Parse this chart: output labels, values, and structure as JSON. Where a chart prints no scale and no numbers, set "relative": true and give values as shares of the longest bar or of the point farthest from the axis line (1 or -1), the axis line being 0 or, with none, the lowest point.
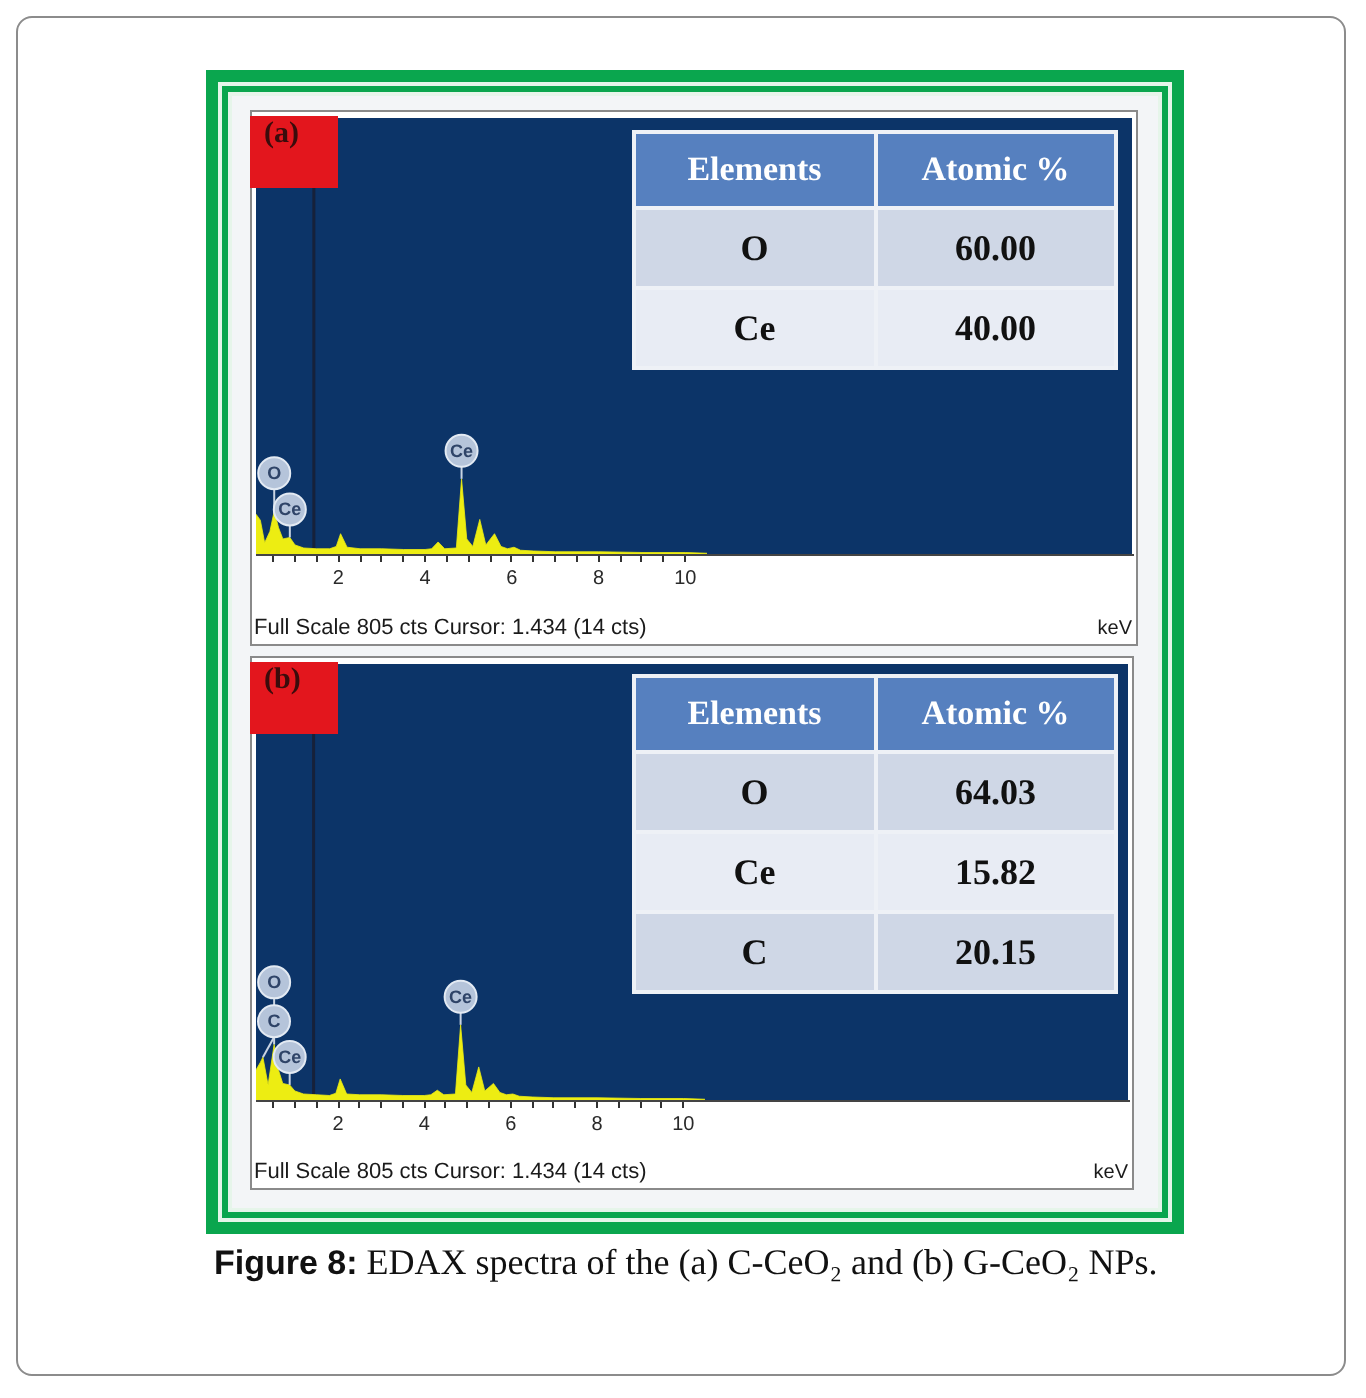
{
  "chart_data": [
    {
      "type": "area",
      "title": "(a)",
      "xlabel": "keV",
      "x": [
        0.1,
        0.2,
        0.3,
        0.42,
        0.52,
        0.62,
        0.72,
        0.88,
        1.0,
        1.2,
        1.5,
        1.8,
        1.95,
        2.05,
        2.2,
        2.5,
        3.0,
        3.5,
        4.0,
        4.15,
        4.3,
        4.45,
        4.72,
        4.84,
        4.96,
        5.1,
        5.26,
        5.4,
        5.6,
        5.75,
        5.9,
        6.05,
        6.2,
        6.5,
        7.0,
        8.0,
        9.0,
        10.0,
        10.5
      ],
      "values": [
        0.53,
        0.45,
        0.15,
        0.3,
        0.57,
        0.35,
        0.2,
        0.22,
        0.12,
        0.08,
        0.07,
        0.07,
        0.1,
        0.27,
        0.09,
        0.07,
        0.07,
        0.06,
        0.06,
        0.07,
        0.16,
        0.07,
        0.08,
        1,
        0.2,
        0.1,
        0.46,
        0.12,
        0.27,
        0.1,
        0.07,
        0.09,
        0.05,
        0.04,
        0.03,
        0.03,
        0.02,
        0.02,
        0.01
      ],
      "color": "#eded12",
      "relative": true,
      "xlim": [
        0.1,
        20.3
      ],
      "xticks": [
        {
          "value": 0.5,
          "label": null
        },
        {
          "value": 1,
          "label": null
        },
        {
          "value": 1.5,
          "label": null
        },
        2,
        {
          "value": 2.5,
          "label": null
        },
        {
          "value": 3,
          "label": null
        },
        {
          "value": 3.5,
          "label": null
        },
        4,
        {
          "value": 4.5,
          "label": null
        },
        {
          "value": 5,
          "label": null
        },
        {
          "value": 5.5,
          "label": null
        },
        6,
        {
          "value": 6.5,
          "label": null
        },
        {
          "value": 7,
          "label": null
        },
        {
          "value": 7.5,
          "label": null
        },
        8,
        {
          "value": 8.5,
          "label": null
        },
        {
          "value": 9,
          "label": null
        },
        {
          "value": 9.5,
          "label": null
        },
        10
      ],
      "ref_lines": [
        {
          "axis": "x",
          "value": 1.434,
          "color": "#16213a"
        }
      ],
      "annotations": [
        {
          "text": "O",
          "x": 0.52,
          "y": 0.57
        },
        {
          "text": "Ce",
          "x": 0.88,
          "y": 0.22
        },
        {
          "text": "Ce",
          "x": 4.84,
          "y": 1
        },
        "Full Scale 805 cts Cursor: 1.434 (14 cts)"
      ]
    },
    {
      "type": "other",
      "annotations": [
        "Elements",
        "Atomic %",
        "O",
        "60.00",
        "Ce",
        "40.00"
      ]
    },
    {
      "type": "area",
      "title": "(b)",
      "xlabel": "keV",
      "x": [
        0.1,
        0.2,
        0.26,
        0.38,
        0.52,
        0.62,
        0.72,
        0.88,
        1.0,
        1.2,
        1.5,
        1.8,
        1.95,
        2.05,
        2.2,
        2.5,
        3.0,
        3.5,
        4.0,
        4.15,
        4.3,
        4.45,
        4.72,
        4.84,
        4.96,
        5.1,
        5.26,
        5.4,
        5.6,
        5.75,
        5.9,
        6.05,
        6.2,
        6.5,
        7.0,
        8.0,
        9.0,
        10.0,
        10.5
      ],
      "values": [
        0.4,
        0.5,
        0.57,
        0.2,
        0.74,
        0.4,
        0.22,
        0.2,
        0.12,
        0.08,
        0.07,
        0.06,
        0.09,
        0.28,
        0.08,
        0.07,
        0.07,
        0.06,
        0.06,
        0.07,
        0.13,
        0.07,
        0.08,
        1,
        0.2,
        0.1,
        0.44,
        0.12,
        0.22,
        0.1,
        0.07,
        0.08,
        0.05,
        0.04,
        0.03,
        0.03,
        0.02,
        0.02,
        0.01
      ],
      "color": "#eded12",
      "relative": true,
      "xlim": [
        0.1,
        20.3
      ],
      "xticks": [
        {
          "value": 0.5,
          "label": null
        },
        {
          "value": 1,
          "label": null
        },
        {
          "value": 1.5,
          "label": null
        },
        2,
        {
          "value": 2.5,
          "label": null
        },
        {
          "value": 3,
          "label": null
        },
        {
          "value": 3.5,
          "label": null
        },
        4,
        {
          "value": 4.5,
          "label": null
        },
        {
          "value": 5,
          "label": null
        },
        {
          "value": 5.5,
          "label": null
        },
        6,
        {
          "value": 6.5,
          "label": null
        },
        {
          "value": 7,
          "label": null
        },
        {
          "value": 7.5,
          "label": null
        },
        8,
        {
          "value": 8.5,
          "label": null
        },
        {
          "value": 9,
          "label": null
        },
        {
          "value": 9.5,
          "label": null
        },
        10
      ],
      "ref_lines": [
        {
          "axis": "x",
          "value": 1.434,
          "color": "#16213a"
        }
      ],
      "annotations": [
        {
          "text": "C",
          "x": 0.26,
          "y": 0.57
        },
        {
          "text": "O",
          "x": 0.52,
          "y": 0.74
        },
        {
          "text": "Ce",
          "x": 0.88,
          "y": 0.2
        },
        {
          "text": "Ce",
          "x": 4.84,
          "y": 1
        },
        "Full Scale 805 cts Cursor: 1.434 (14 cts)"
      ]
    },
    {
      "type": "other",
      "annotations": [
        "Elements",
        "Atomic %",
        "O",
        "64.03",
        "Ce",
        "15.82",
        "C",
        "20.15"
      ]
    },
    {
      "type": "other",
      "annotations": [
        "Figure 8: EDAX spectra of the (a) C-CeO₂ and (b) G-CeO₂ NPs."
      ]
    }
  ]
}
